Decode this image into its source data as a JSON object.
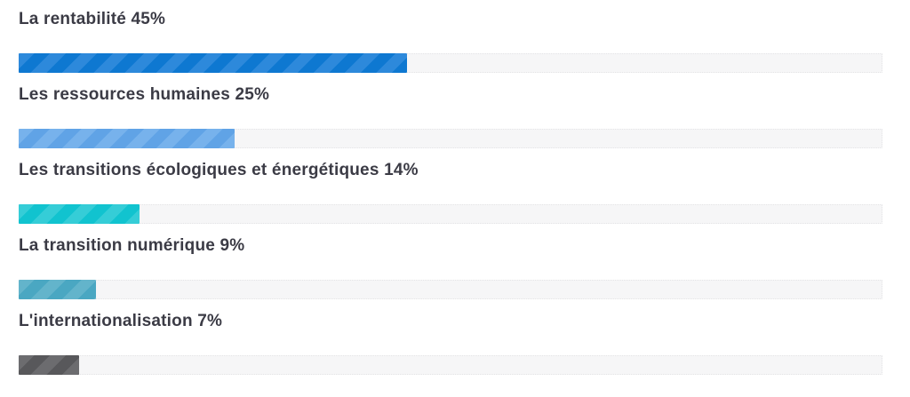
{
  "page": {
    "background": "#ffffff",
    "label_color": "#3b3b45"
  },
  "chart_data": {
    "type": "bar",
    "orientation": "horizontal",
    "title": "",
    "xlabel": "",
    "ylabel": "",
    "unit": "%",
    "xlim": [
      0,
      100
    ],
    "grid": false,
    "legend": "none",
    "categories": [
      "La rentabilité",
      "Les ressources humaines",
      "Les transitions écologiques et énergétiques",
      "La transition numérique",
      "L'internationalisation"
    ],
    "values": [
      45,
      25,
      14,
      9,
      7
    ],
    "bar_colors": [
      {
        "base": "#0e78d1",
        "stripe": "#2d89db"
      },
      {
        "base": "#60a3e6",
        "stripe": "#77b2ec"
      },
      {
        "base": "#11c3cf",
        "stripe": "#35cdd7"
      },
      {
        "base": "#4aa7c2",
        "stripe": "#63b4cb"
      },
      {
        "base": "#58585b",
        "stripe": "#6c6c6f"
      }
    ],
    "track_color": "#f6f6f7",
    "track_border_color": "#e4e4e6"
  }
}
